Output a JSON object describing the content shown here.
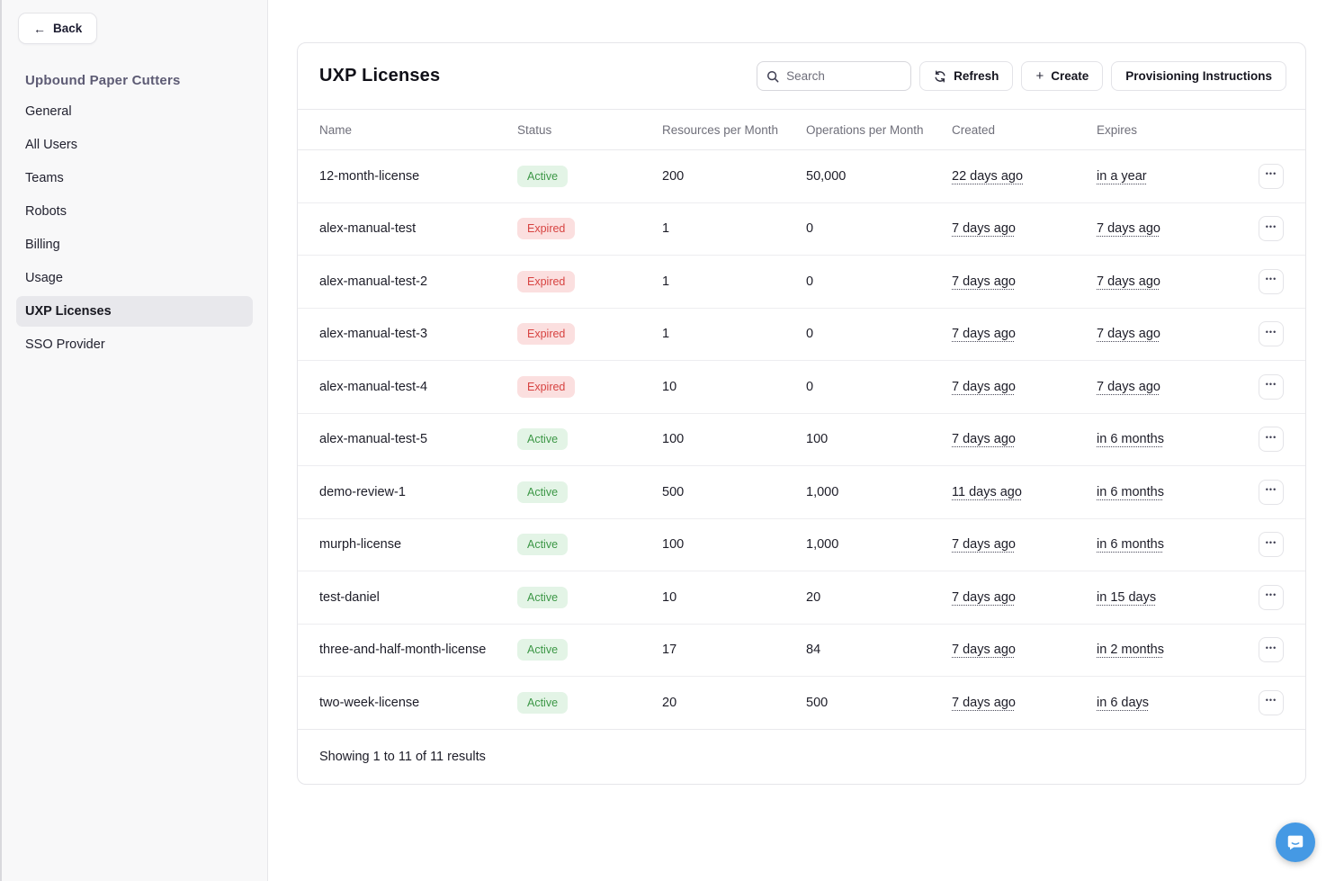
{
  "sidebar": {
    "back_label": "Back",
    "back_arrow": "←",
    "org_name": "Upbound Paper Cutters",
    "items": [
      {
        "label": "General",
        "selected": false
      },
      {
        "label": "All Users",
        "selected": false
      },
      {
        "label": "Teams",
        "selected": false
      },
      {
        "label": "Robots",
        "selected": false
      },
      {
        "label": "Billing",
        "selected": false
      },
      {
        "label": "Usage",
        "selected": false
      },
      {
        "label": "UXP Licenses",
        "selected": true
      },
      {
        "label": "SSO Provider",
        "selected": false
      }
    ]
  },
  "panel": {
    "title": "UXP Licenses",
    "search_placeholder": "Search",
    "refresh_label": "Refresh",
    "create_label": "Create",
    "create_glyph": "+",
    "provisioning_label": "Provisioning Instructions",
    "footer_text": "Showing 1 to 11 of 11 results",
    "ellipsis_glyph": "•••"
  },
  "table": {
    "columns": [
      "Name",
      "Status",
      "Resources per Month",
      "Operations per Month",
      "Created",
      "Expires"
    ],
    "rows": [
      {
        "name": "12-month-license",
        "status": "Active",
        "resources": "200",
        "operations": "50,000",
        "created": "22 days ago",
        "expires": "in a year"
      },
      {
        "name": "alex-manual-test",
        "status": "Expired",
        "resources": "1",
        "operations": "0",
        "created": "7 days ago",
        "expires": "7 days ago"
      },
      {
        "name": "alex-manual-test-2",
        "status": "Expired",
        "resources": "1",
        "operations": "0",
        "created": "7 days ago",
        "expires": "7 days ago"
      },
      {
        "name": "alex-manual-test-3",
        "status": "Expired",
        "resources": "1",
        "operations": "0",
        "created": "7 days ago",
        "expires": "7 days ago"
      },
      {
        "name": "alex-manual-test-4",
        "status": "Expired",
        "resources": "10",
        "operations": "0",
        "created": "7 days ago",
        "expires": "7 days ago"
      },
      {
        "name": "alex-manual-test-5",
        "status": "Active",
        "resources": "100",
        "operations": "100",
        "created": "7 days ago",
        "expires": "in 6 months"
      },
      {
        "name": "demo-review-1",
        "status": "Active",
        "resources": "500",
        "operations": "1,000",
        "created": "11 days ago",
        "expires": "in 6 months"
      },
      {
        "name": "murph-license",
        "status": "Active",
        "resources": "100",
        "operations": "1,000",
        "created": "7 days ago",
        "expires": "in 6 months"
      },
      {
        "name": "test-daniel",
        "status": "Active",
        "resources": "10",
        "operations": "20",
        "created": "7 days ago",
        "expires": "in 15 days"
      },
      {
        "name": "three-and-half-month-license",
        "status": "Active",
        "resources": "17",
        "operations": "84",
        "created": "7 days ago",
        "expires": "in 2 months"
      },
      {
        "name": "two-week-license",
        "status": "Active",
        "resources": "20",
        "operations": "500",
        "created": "7 days ago",
        "expires": "in 6 days"
      }
    ]
  },
  "colors": {
    "active_badge_bg": "#e3f4e6",
    "active_badge_text": "#3c9746",
    "expired_badge_bg": "#fbdfdf",
    "expired_badge_text": "#d74341",
    "chat_bubble": "#4599e4",
    "sidebar_bg": "#f8f8f9",
    "selected_nav_bg": "#e8e8ec",
    "org_name_text": "#5d5b74"
  }
}
